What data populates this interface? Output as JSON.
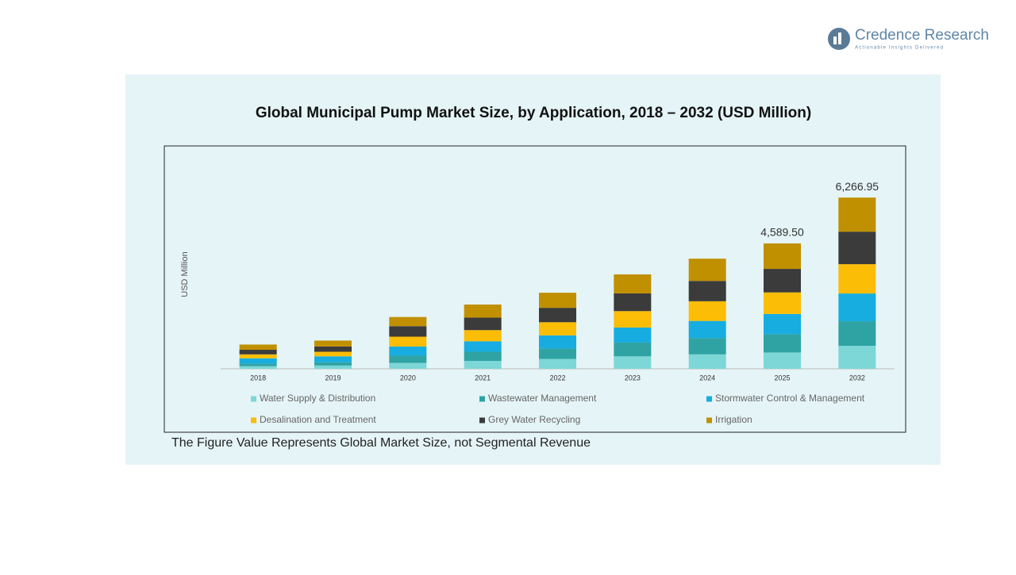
{
  "brand": {
    "name": "Credence Research",
    "tagline": "Actionable Insights Delivered"
  },
  "chart_data": {
    "type": "stacked-bar",
    "title": "Global Municipal Pump Market Size, by Application, 2018 – 2032 (USD Million)",
    "y_label": "USD Million",
    "note": "The Figure Value Represents Global Market Size, not Segmental Revenue",
    "categories": [
      "2018",
      "2019",
      "2020",
      "2021",
      "2022",
      "2023",
      "2024",
      "2025",
      "2032"
    ],
    "series": [
      {
        "name": "Water Supply & Distribution",
        "color": "#7dd7d7",
        "values": [
          96,
          120,
          216,
          288,
          360,
          456,
          528,
          597.5,
          841.3
        ]
      },
      {
        "name": "Wastewater Management",
        "color": "#2fa3a3",
        "values": [
          96,
          120,
          264,
          336,
          384,
          504,
          600,
          669.2,
          899.3
        ]
      },
      {
        "name": "Stormwater Control & Management",
        "color": "#17ade0",
        "values": [
          192,
          216,
          336,
          384,
          480,
          552,
          624,
          740.9,
          1015.4
        ]
      },
      {
        "name": "Desalination and Treatment",
        "color": "#fbbd05",
        "values": [
          144,
          168,
          360,
          408,
          480,
          600,
          720,
          788.7,
          1073.4
        ]
      },
      {
        "name": "Grey Water Recycling",
        "color": "#3b3b3b",
        "values": [
          168,
          192,
          384,
          456,
          528,
          648,
          744,
          860.4,
          1189.4
        ]
      },
      {
        "name": "Irrigation",
        "color": "#c09000",
        "values": [
          192,
          216,
          336,
          480,
          552,
          696,
          816,
          932.8,
          1248.15
        ]
      }
    ],
    "total_labels": [
      null,
      null,
      null,
      null,
      null,
      null,
      null,
      "4,589.50",
      "6,266.95"
    ],
    "ylim": [
      0,
      7200
    ]
  }
}
